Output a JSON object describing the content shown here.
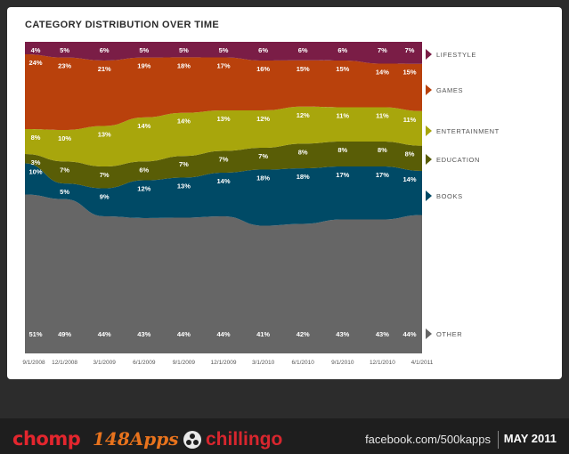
{
  "chart_data": {
    "type": "area",
    "stacked": true,
    "percent": true,
    "title": "CATEGORY DISTRIBUTION OVER TIME",
    "x": [
      "9/1/2008",
      "12/1/2008",
      "3/1/2009",
      "6/1/2009",
      "9/1/2009",
      "12/1/2009",
      "3/1/2010",
      "6/1/2010",
      "9/1/2010",
      "12/1/2010",
      "4/1/2011"
    ],
    "series": [
      {
        "name": "OTHER",
        "color": "#666666",
        "values": [
          51,
          49,
          44,
          43,
          44,
          44,
          41,
          42,
          43,
          43,
          44
        ]
      },
      {
        "name": "BOOKS",
        "color": "#004a66",
        "values": [
          10,
          5,
          9,
          12,
          13,
          14,
          18,
          18,
          17,
          17,
          14
        ]
      },
      {
        "name": "EDUCATION",
        "color": "#595d06",
        "values": [
          3,
          7,
          7,
          6,
          7,
          7,
          7,
          8,
          8,
          8,
          8
        ]
      },
      {
        "name": "ENTERTAINMENT",
        "color": "#a8a60c",
        "values": [
          8,
          10,
          13,
          14,
          14,
          13,
          12,
          12,
          11,
          11,
          11
        ]
      },
      {
        "name": "GAMES",
        "color": "#b9410c",
        "values": [
          24,
          23,
          21,
          19,
          18,
          17,
          16,
          15,
          15,
          14,
          15
        ]
      },
      {
        "name": "LIFESTYLE",
        "color": "#7a1d46",
        "values": [
          4,
          5,
          6,
          5,
          5,
          5,
          6,
          6,
          6,
          7,
          7
        ]
      }
    ],
    "legend_position": "right",
    "ylim": [
      0,
      100
    ]
  },
  "footer": {
    "logo1": "chomp",
    "logo2": "148Apps",
    "logo3": "chillingo",
    "facebook": "facebook.com/500kapps",
    "date": "MAY 2011"
  }
}
